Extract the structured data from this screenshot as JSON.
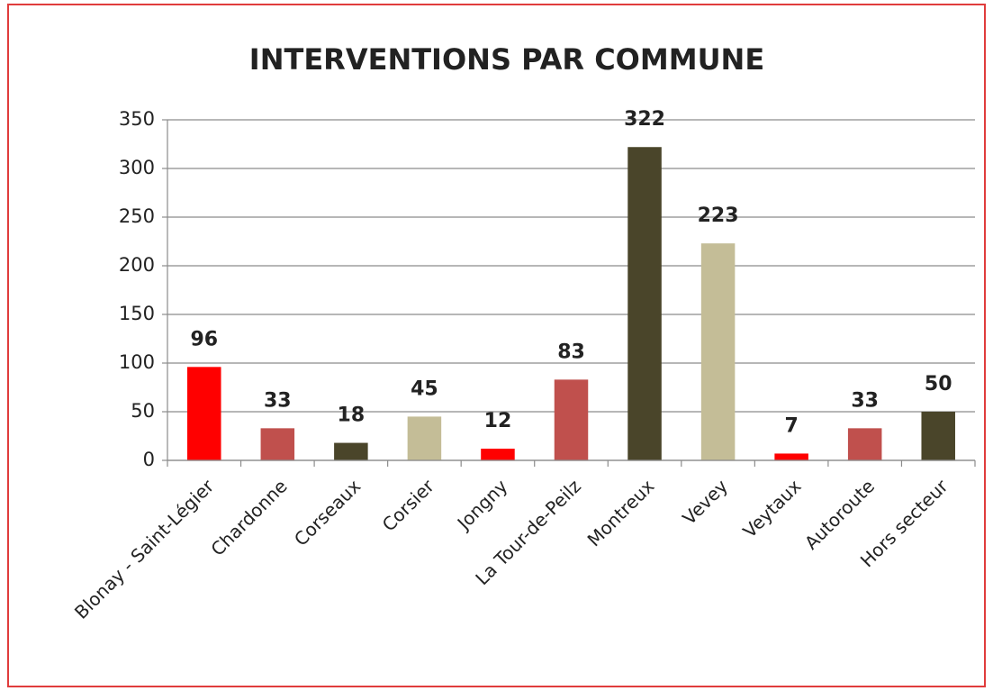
{
  "chart_data": {
    "type": "bar",
    "title": "INTERVENTIONS PAR COMMUNE",
    "categories": [
      "Blonay - Saint-Légier",
      "Chardonne",
      "Corseaux",
      "Corsier",
      "Jongny",
      "La Tour-de-Peilz",
      "Montreux",
      "Vevey",
      "Veytaux",
      "Autoroute",
      "Hors secteur"
    ],
    "values": [
      96,
      33,
      18,
      45,
      12,
      83,
      322,
      223,
      7,
      33,
      50
    ],
    "colors": [
      "#ff0000",
      "#c0504d",
      "#4a452a",
      "#c4bd97",
      "#ff0000",
      "#c0504d",
      "#4a452a",
      "#c4bd97",
      "#ff0000",
      "#c0504d",
      "#4a452a"
    ],
    "ylim": [
      0,
      350
    ],
    "yticks": [
      0,
      50,
      100,
      150,
      200,
      250,
      300,
      350
    ],
    "grid": true
  }
}
